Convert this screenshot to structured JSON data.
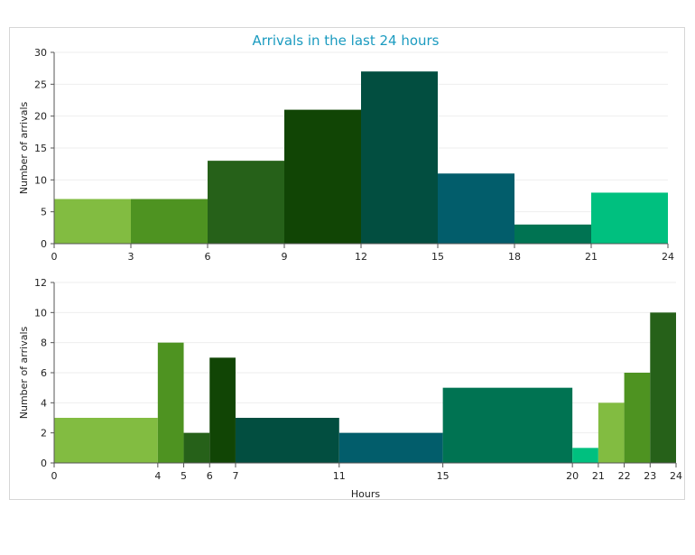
{
  "chart_data": [
    {
      "type": "bar",
      "title": "Arrivals in the last 24 hours",
      "xlabel": "",
      "ylabel": "Number of arrivals",
      "xlim": [
        0,
        24
      ],
      "ylim": [
        0,
        30
      ],
      "xticks": [
        0,
        3,
        6,
        9,
        12,
        15,
        18,
        21,
        24
      ],
      "yticks": [
        0,
        5,
        10,
        15,
        20,
        25,
        30
      ],
      "bins": [
        {
          "from": 0,
          "to": 3,
          "value": 7,
          "color": "#82bc41"
        },
        {
          "from": 3,
          "to": 6,
          "value": 7,
          "color": "#4e9321"
        },
        {
          "from": 6,
          "to": 9,
          "value": 13,
          "color": "#266119"
        },
        {
          "from": 9,
          "to": 12,
          "value": 21,
          "color": "#114505"
        },
        {
          "from": 12,
          "to": 15,
          "value": 27,
          "color": "#024e40"
        },
        {
          "from": 15,
          "to": 18,
          "value": 11,
          "color": "#025d6b"
        },
        {
          "from": 18,
          "to": 21,
          "value": 3,
          "color": "#007352"
        },
        {
          "from": 21,
          "to": 24,
          "value": 8,
          "color": "#00c07f"
        }
      ]
    },
    {
      "type": "bar",
      "title": "",
      "xlabel": "Hours",
      "ylabel": "Number of arrivals",
      "xlim": [
        0,
        24
      ],
      "ylim": [
        0,
        12
      ],
      "xticks": [
        0,
        4,
        5,
        6,
        7,
        11,
        15,
        20,
        21,
        22,
        23,
        24
      ],
      "yticks": [
        0,
        2,
        4,
        6,
        8,
        10,
        12
      ],
      "bins": [
        {
          "from": 0,
          "to": 4,
          "value": 3,
          "color": "#82bc41"
        },
        {
          "from": 4,
          "to": 5,
          "value": 8,
          "color": "#4e9321"
        },
        {
          "from": 5,
          "to": 6,
          "value": 2,
          "color": "#266119"
        },
        {
          "from": 6,
          "to": 7,
          "value": 7,
          "color": "#114505"
        },
        {
          "from": 7,
          "to": 11,
          "value": 3,
          "color": "#024e40"
        },
        {
          "from": 11,
          "to": 15,
          "value": 2,
          "color": "#025d6b"
        },
        {
          "from": 15,
          "to": 20,
          "value": 5,
          "color": "#007352"
        },
        {
          "from": 20,
          "to": 21,
          "value": 1,
          "color": "#00c07f"
        },
        {
          "from": 21,
          "to": 22,
          "value": 4,
          "color": "#82bc41"
        },
        {
          "from": 22,
          "to": 23,
          "value": 6,
          "color": "#4e9321"
        },
        {
          "from": 23,
          "to": 24,
          "value": 10,
          "color": "#266119"
        }
      ]
    }
  ]
}
